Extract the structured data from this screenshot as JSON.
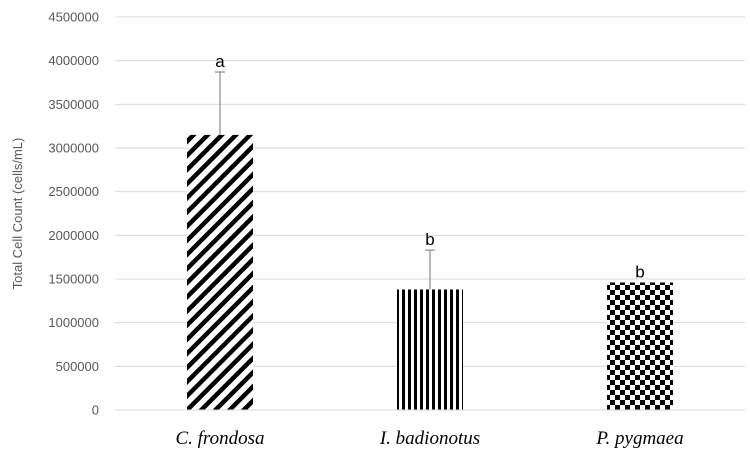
{
  "chart_data": {
    "type": "bar",
    "ylabel": "Total Cell Count (cells/mL)",
    "ylim": [
      0,
      4500000
    ],
    "ytick_step": 500000,
    "yticks": [
      "0",
      "500000",
      "1000000",
      "1500000",
      "2000000",
      "2500000",
      "3000000",
      "3500000",
      "4000000",
      "4500000"
    ],
    "grid": true,
    "categories": [
      "C. frondosa",
      "I. badionotus",
      "P. pygmaea"
    ],
    "values": [
      3150000,
      1380000,
      1460000
    ],
    "error_upper": [
      720000,
      450000,
      0
    ],
    "significance_labels": [
      "a",
      "b",
      "b"
    ],
    "patterns": [
      "diagonal-hatch",
      "vertical-stripes",
      "checkerboard"
    ],
    "colors": {
      "bar_ink": "#000000",
      "grid": "#d9d9d9",
      "axis_text": "#595959",
      "error_bar": "#8c8c8c"
    }
  }
}
